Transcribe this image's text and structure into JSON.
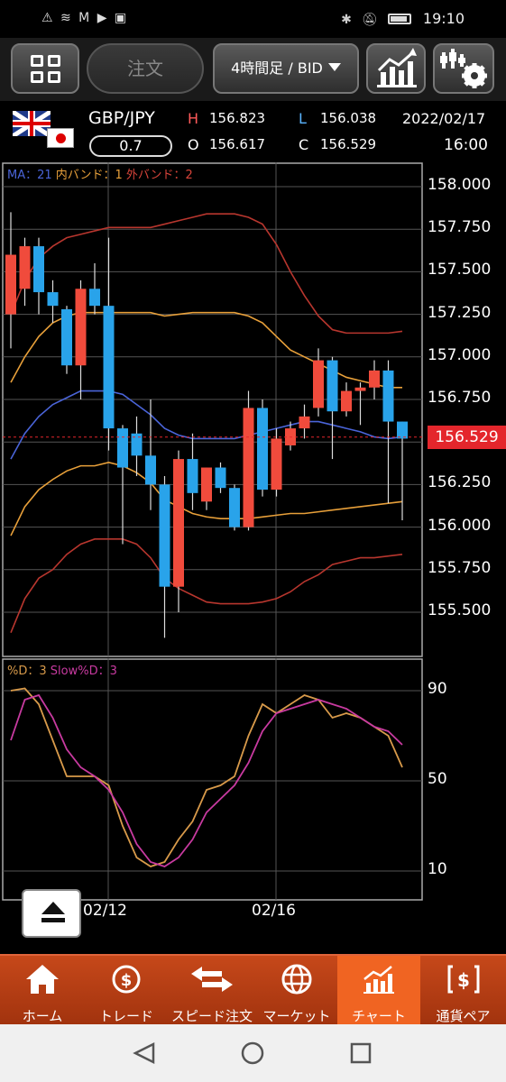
{
  "status_bar": {
    "time": "19:10",
    "left_icons": "⚠ ≋ M ▶ ▣"
  },
  "toolbar": {
    "order_label": "注文",
    "period_label": "4時間足 / BID"
  },
  "pair": {
    "name": "GBP/JPY",
    "spread": "0.7",
    "high_label": "H",
    "high": "156.823",
    "low_label": "L",
    "low": "156.038",
    "open_label": "O",
    "open": "156.617",
    "close_label": "C",
    "close": "156.529",
    "date": "2022/02/17",
    "time": "16:00"
  },
  "legend_top": {
    "ma": "MA：21",
    "inner": "内バンド：1",
    "outer": "外バンド：2"
  },
  "legend_bottom": {
    "d": "%D：3",
    "slow": "Slow%D：3"
  },
  "current_price": "156.529",
  "colors": {
    "up": "#f04b3c",
    "down": "#29a3ea",
    "ma": "#4a64d8",
    "inner": "#e8a03a",
    "outer": "#b8362e",
    "pctd": "#d89a4a",
    "slowd": "#c83aa0",
    "nav_active": "#f06422"
  },
  "chart_data": {
    "type": "candlestick",
    "price_axis": {
      "ticks": [
        "158.000",
        "157.750",
        "157.500",
        "157.250",
        "157.000",
        "156.750",
        "156.500",
        "156.250",
        "156.000",
        "155.750",
        "155.500"
      ],
      "ylim": [
        155.3,
        158.1
      ]
    },
    "osc_axis": {
      "ticks": [
        "90",
        "50",
        "10"
      ],
      "ylim": [
        0,
        100
      ]
    },
    "x_labels": [
      "02/12",
      "02/16"
    ],
    "candles": [
      {
        "o": 157.25,
        "h": 157.85,
        "l": 157.05,
        "c": 157.6
      },
      {
        "o": 157.4,
        "h": 157.7,
        "l": 157.3,
        "c": 157.65
      },
      {
        "o": 157.65,
        "h": 157.7,
        "l": 157.25,
        "c": 157.38
      },
      {
        "o": 157.38,
        "h": 157.45,
        "l": 157.2,
        "c": 157.3
      },
      {
        "o": 157.28,
        "h": 157.3,
        "l": 156.9,
        "c": 156.95
      },
      {
        "o": 156.95,
        "h": 157.45,
        "l": 156.75,
        "c": 157.4
      },
      {
        "o": 157.4,
        "h": 157.55,
        "l": 157.25,
        "c": 157.3
      },
      {
        "o": 157.3,
        "h": 157.7,
        "l": 156.45,
        "c": 156.58
      },
      {
        "o": 156.58,
        "h": 156.6,
        "l": 155.9,
        "c": 156.35
      },
      {
        "o": 156.55,
        "h": 156.65,
        "l": 156.3,
        "c": 156.42
      },
      {
        "o": 156.42,
        "h": 156.75,
        "l": 156.1,
        "c": 156.25
      },
      {
        "o": 156.25,
        "h": 156.3,
        "l": 155.35,
        "c": 155.65
      },
      {
        "o": 155.65,
        "h": 156.45,
        "l": 155.5,
        "c": 156.4
      },
      {
        "o": 156.4,
        "h": 156.55,
        "l": 156.1,
        "c": 156.2
      },
      {
        "o": 156.15,
        "h": 156.35,
        "l": 156.1,
        "c": 156.35
      },
      {
        "o": 156.35,
        "h": 156.38,
        "l": 156.2,
        "c": 156.23
      },
      {
        "o": 156.23,
        "h": 156.25,
        "l": 155.98,
        "c": 156.0
      },
      {
        "o": 156.0,
        "h": 156.8,
        "l": 155.98,
        "c": 156.7
      },
      {
        "o": 156.7,
        "h": 156.75,
        "l": 156.18,
        "c": 156.22
      },
      {
        "o": 156.22,
        "h": 156.58,
        "l": 156.18,
        "c": 156.52
      },
      {
        "o": 156.48,
        "h": 156.62,
        "l": 156.45,
        "c": 156.58
      },
      {
        "o": 156.58,
        "h": 156.72,
        "l": 156.52,
        "c": 156.65
      },
      {
        "o": 156.7,
        "h": 157.05,
        "l": 156.65,
        "c": 156.98
      },
      {
        "o": 156.98,
        "h": 157.0,
        "l": 156.4,
        "c": 156.68
      },
      {
        "o": 156.68,
        "h": 156.85,
        "l": 156.65,
        "c": 156.8
      },
      {
        "o": 156.8,
        "h": 156.85,
        "l": 156.6,
        "c": 156.82
      },
      {
        "o": 156.82,
        "h": 156.98,
        "l": 156.75,
        "c": 156.92
      },
      {
        "o": 156.92,
        "h": 156.98,
        "l": 156.14,
        "c": 156.62
      },
      {
        "o": 156.62,
        "h": 156.62,
        "l": 156.04,
        "c": 156.52
      }
    ],
    "ma21": [
      156.4,
      156.55,
      156.65,
      156.72,
      156.76,
      156.8,
      156.8,
      156.8,
      156.78,
      156.72,
      156.66,
      156.58,
      156.54,
      156.52,
      156.52,
      156.52,
      156.52,
      156.54,
      156.56,
      156.58,
      156.6,
      156.62,
      156.62,
      156.6,
      156.58,
      156.56,
      156.53,
      156.52,
      156.53
    ],
    "inner_upper": [
      156.85,
      157.0,
      157.12,
      157.2,
      157.24,
      157.26,
      157.26,
      157.26,
      157.26,
      157.26,
      157.26,
      157.24,
      157.25,
      157.26,
      157.26,
      157.26,
      157.26,
      157.24,
      157.2,
      157.12,
      157.04,
      157.0,
      156.96,
      156.92,
      156.88,
      156.86,
      156.84,
      156.82,
      156.82
    ],
    "inner_lower": [
      155.95,
      156.12,
      156.22,
      156.28,
      156.33,
      156.36,
      156.36,
      156.38,
      156.36,
      156.32,
      156.26,
      156.16,
      156.12,
      156.08,
      156.06,
      156.05,
      156.05,
      156.05,
      156.06,
      156.07,
      156.08,
      156.08,
      156.09,
      156.1,
      156.11,
      156.12,
      156.13,
      156.14,
      156.15
    ],
    "outer_upper": [
      157.25,
      157.45,
      157.58,
      157.65,
      157.7,
      157.72,
      157.74,
      157.76,
      157.76,
      157.76,
      157.76,
      157.78,
      157.8,
      157.82,
      157.84,
      157.84,
      157.84,
      157.82,
      157.78,
      157.66,
      157.5,
      157.36,
      157.24,
      157.16,
      157.14,
      157.14,
      157.14,
      157.14,
      157.15
    ],
    "outer_lower": [
      155.38,
      155.58,
      155.7,
      155.75,
      155.84,
      155.9,
      155.93,
      155.93,
      155.93,
      155.9,
      155.82,
      155.7,
      155.64,
      155.6,
      155.56,
      155.55,
      155.55,
      155.55,
      155.56,
      155.58,
      155.62,
      155.68,
      155.72,
      155.78,
      155.8,
      155.82,
      155.82,
      155.83,
      155.84
    ],
    "pct_d": [
      90,
      91,
      84,
      68,
      52,
      52,
      52,
      48,
      30,
      16,
      12,
      14,
      24,
      32,
      46,
      48,
      52,
      70,
      84,
      80,
      84,
      88,
      86,
      78,
      80,
      78,
      74,
      70,
      56
    ],
    "slow_d": [
      68,
      86,
      88,
      78,
      64,
      56,
      52,
      46,
      36,
      22,
      14,
      12,
      16,
      24,
      36,
      42,
      48,
      58,
      72,
      80,
      82,
      84,
      86,
      84,
      82,
      78,
      74,
      72,
      66
    ]
  },
  "nav": [
    {
      "label": "ホーム",
      "icon": "home-icon"
    },
    {
      "label": "トレード",
      "icon": "trade-icon"
    },
    {
      "label": "スピード注文",
      "icon": "speed-order-icon"
    },
    {
      "label": "マーケット",
      "icon": "market-globe-icon"
    },
    {
      "label": "チャート",
      "icon": "chart-icon"
    },
    {
      "label": "通貨ペア",
      "icon": "currency-pair-icon"
    }
  ]
}
